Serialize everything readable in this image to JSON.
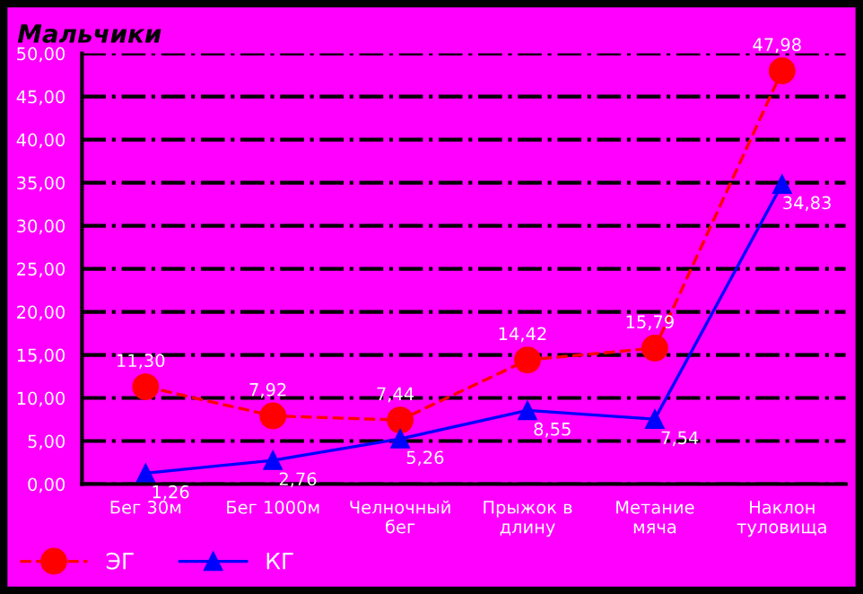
{
  "chart_data": {
    "type": "line",
    "title": "Мальчики",
    "categories": [
      "Бег 30м",
      "Бег 1000м",
      "Челночный\nбег",
      "Прыжок в\nдлину",
      "Метание\nмяча",
      "Наклон\nтуловища"
    ],
    "series": [
      {
        "name": "ЭГ",
        "color": "#ff0000",
        "marker": "circle",
        "line_style": "dashed",
        "values": [
          11.3,
          7.92,
          7.44,
          14.42,
          15.79,
          47.98
        ],
        "value_labels": [
          "11,30",
          "7,92",
          "7,44",
          "14,42",
          "15,79",
          "47,98"
        ]
      },
      {
        "name": "КГ",
        "color": "#0000ff",
        "marker": "triangle",
        "line_style": "solid",
        "values": [
          1.26,
          2.76,
          5.26,
          8.55,
          7.54,
          34.83
        ],
        "value_labels": [
          "1,26",
          "2,76",
          "5,26",
          "8,55",
          "7,54",
          "34,83"
        ]
      }
    ],
    "ylim": [
      0,
      50
    ],
    "yticks": [
      {
        "value": 0,
        "label": "0,00"
      },
      {
        "value": 5,
        "label": "5,00"
      },
      {
        "value": 10,
        "label": "10,00"
      },
      {
        "value": 15,
        "label": "15,00"
      },
      {
        "value": 20,
        "label": "20,00"
      },
      {
        "value": 25,
        "label": "25,00"
      },
      {
        "value": 30,
        "label": "30,00"
      },
      {
        "value": 35,
        "label": "35,00"
      },
      {
        "value": 40,
        "label": "40,00"
      },
      {
        "value": 45,
        "label": "45,00"
      },
      {
        "value": 50,
        "label": "50,00"
      }
    ],
    "grid": "y",
    "legend": "bottom left"
  }
}
